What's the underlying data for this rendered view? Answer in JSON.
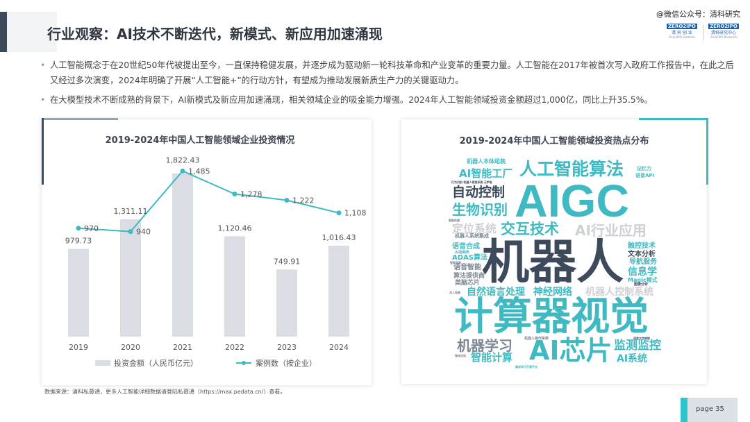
{
  "header": {
    "title": "行业观察：AI技术不断迭代，新模式、新应用加速涌现",
    "watermark": "@微信公众号：清科研究",
    "logos": [
      {
        "top": "ZERO2IPO",
        "sub": "清 科 创 业",
        "en": "Zero2IPO Ventures"
      },
      {
        "top": "ZERO2IPO",
        "sub": "清科研究中心",
        "en": "Zero2IPO Research"
      }
    ]
  },
  "bullets": [
    "人工智能概念于在20世纪50年代被提出至今，一直保持稳健发展，并逐步成为驱动新一轮科技革命和产业变革的重要力量。人工智能在2017年被首次写入政府工作报告中，在此之后又经过多次演变，2024年明确了开展“人工智能+”的行动方针，有望成为推动发展新质生产力的关键驱动力。",
    "在大模型技术不断成熟的背景下，AI新模式及新应用加速涌现，相关领域企业的吸金能力增强。2024年人工智能领域投资金额超过1,000亿，同比上升35.5%。"
  ],
  "chart_data": {
    "type": "bar+line",
    "title": "2019-2024年中国人工智能领域企业投资情况",
    "categories": [
      "2019",
      "2020",
      "2021",
      "2022",
      "2023",
      "2024"
    ],
    "series": [
      {
        "name": "投资金额（人民币亿元）",
        "type": "bar",
        "values": [
          979.73,
          1311.11,
          1822.43,
          1120.46,
          749.91,
          1016.43
        ],
        "labels": [
          "979.73",
          "1,311.11",
          "1,822.43",
          "1,120.46",
          "749.91",
          "1,016.43"
        ],
        "color": "#dadde3"
      },
      {
        "name": "案例数（按企业）",
        "type": "line",
        "values": [
          970,
          940,
          1485,
          1278,
          1222,
          1108
        ],
        "labels": [
          "970",
          "940",
          "1,485",
          "1,278",
          "1,222",
          "1,108"
        ],
        "color": "#3fbac2"
      }
    ],
    "legend": "bottom",
    "grid": false
  },
  "wordcloud": {
    "title": "2019-2024年中国人工智能领域投资热点分布",
    "colors": {
      "teal": "#3fbac2",
      "dark": "#3d4a5c",
      "light": "#cdd0d5",
      "gray": "#7d8894"
    },
    "words": [
      "机器人本体组装",
      "人工智能算法",
      "记忆力",
      "语音API",
      "AI智能工厂",
      "行为识别 机器人视觉系统 元宇宙",
      "自动控制",
      "AIGC",
      "生物识别",
      "智能助理",
      "定位系统",
      "交互技术",
      "AI行业应用",
      "机器人系统集成",
      "语音合成",
      "AI视频类",
      "ADAS算法",
      "智能驾驶",
      "语音智能",
      "机器人",
      "触控技术",
      "文本分析",
      "导航服务",
      "信息学",
      "Magic模式",
      "图像分析",
      "算法提供商",
      "类脑芯片",
      "无人驾驶",
      "自然语言处理",
      "神经网络",
      "机器人控制系统",
      "计算器视觉",
      "机器人操作系统",
      "语音文字转换",
      "机器学习",
      "AI芯片",
      "监测监控",
      "物体识别",
      "智能计算",
      "AI系统",
      "集成学习开源平台"
    ]
  },
  "footer": {
    "source": "数据来源：清科私募通，更多人工智能详细数据请登陆私募通（https://max.pedata.cn/）查看。",
    "page": "page   35"
  }
}
